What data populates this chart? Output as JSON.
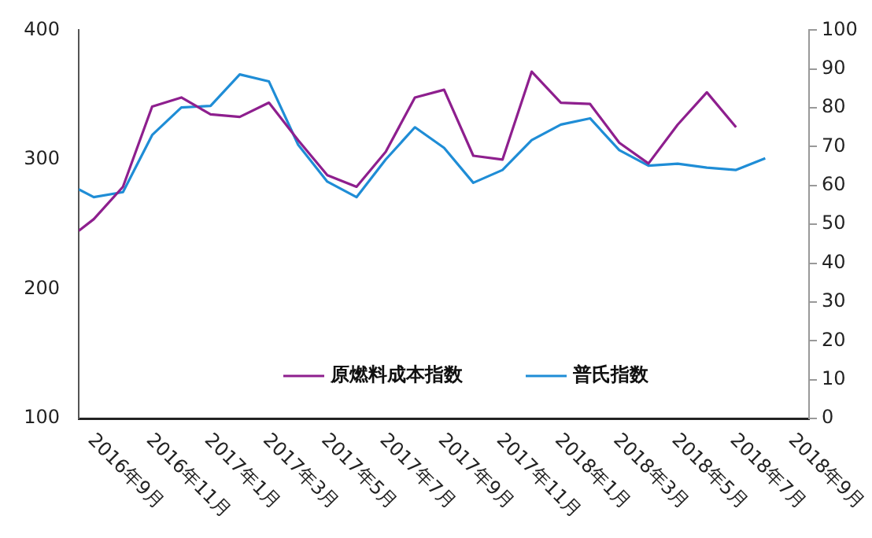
{
  "chart_data": {
    "type": "line",
    "legend": "bottom",
    "grid": false,
    "marker": "none",
    "line_style": "solid",
    "xlim": [
      "2016-08-16",
      "2018-09-16"
    ],
    "xticks": [
      {
        "value": "2016-09",
        "label": "2016年9月"
      },
      {
        "value": "2016-11",
        "label": "2016年11月"
      },
      {
        "value": "2017-01",
        "label": "2017年1月"
      },
      {
        "value": "2017-03",
        "label": "2017年3月"
      },
      {
        "value": "2017-05",
        "label": "2017年5月"
      },
      {
        "value": "2017-07",
        "label": "2017年7月"
      },
      {
        "value": "2017-09",
        "label": "2017年9月"
      },
      {
        "value": "2017-11",
        "label": "2017年11月"
      },
      {
        "value": "2018-01",
        "label": "2018年1月"
      },
      {
        "value": "2018-03",
        "label": "2018年3月"
      },
      {
        "value": "2018-05",
        "label": "2018年5月"
      },
      {
        "value": "2018-07",
        "label": "2018年7月"
      },
      {
        "value": "2018-09",
        "label": "2018年9月"
      }
    ],
    "x": [
      "2016-08-16",
      "2016-09",
      "2016-10",
      "2016-11",
      "2016-12",
      "2017-01",
      "2017-02",
      "2017-03",
      "2017-04",
      "2017-05",
      "2017-06",
      "2017-07",
      "2017-08",
      "2017-09",
      "2017-10",
      "2017-11",
      "2017-12",
      "2018-01",
      "2018-02",
      "2018-03",
      "2018-04",
      "2018-05",
      "2018-06",
      "2018-07",
      "2018-08"
    ],
    "ylim": [
      100,
      400
    ],
    "yticks": [
      100,
      200,
      300,
      400
    ],
    "y2lim": [
      0,
      100
    ],
    "y2ticks": [
      0,
      10,
      20,
      30,
      40,
      50,
      60,
      70,
      80,
      90,
      100
    ],
    "series": [
      {
        "name": "原燃料成本指数",
        "color": "#8e1f8e",
        "axis": "y",
        "values": [
          245,
          254,
          279,
          341,
          348,
          335,
          333,
          344,
          315,
          288,
          279,
          306,
          348,
          354,
          303,
          300,
          368,
          344,
          343,
          313,
          297,
          327,
          352,
          325,
          null
        ]
      },
      {
        "name": "普氏指数",
        "color": "#1f8dd6",
        "axis": "y2",
        "values": [
          59,
          57,
          58.3,
          73,
          80.1,
          80.5,
          88.6,
          86.8,
          70.5,
          61,
          57,
          66.7,
          75,
          69.7,
          60.7,
          64,
          71.7,
          75.7,
          77.3,
          69.1,
          65.1,
          65.6,
          64.6,
          64,
          67
        ]
      }
    ]
  }
}
